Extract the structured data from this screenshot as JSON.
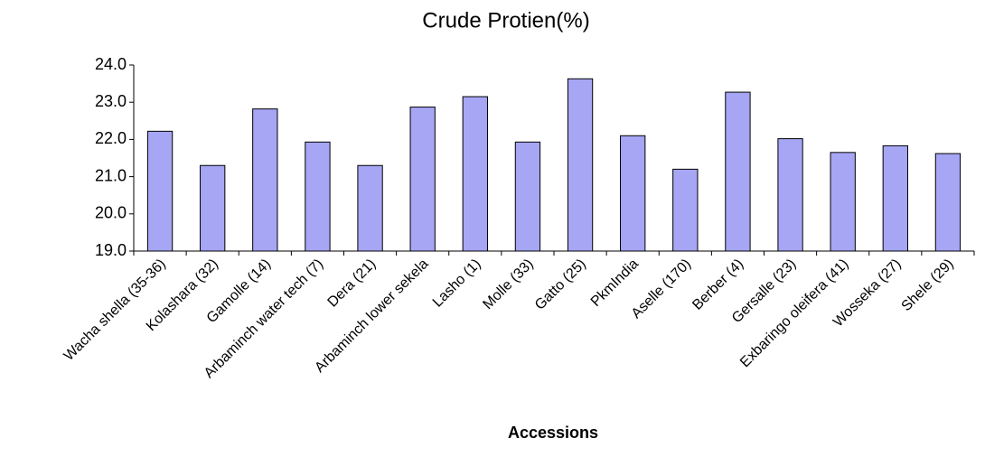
{
  "chart_data": {
    "type": "bar",
    "title": "Crude Protien(%)",
    "x_label": "Accessions",
    "categories": [
      "Wacha shella (35-36)",
      "Kolashara (32)",
      "Gamolle (14)",
      "Arbaminch water tech (7)",
      "Dera (21)",
      "Arbaminch lower sekela",
      "Lasho (1)",
      "Molle (33)",
      "Gatto (25)",
      "PkmIndia",
      "Aselle (170)",
      "Berber (4)",
      "Gersalle (23)",
      "Exbaringo oleifera (41)",
      "Wosseka (27)",
      "Shele (29)"
    ],
    "values": [
      22.22,
      21.3,
      22.82,
      21.93,
      21.3,
      22.87,
      23.15,
      21.93,
      23.63,
      22.1,
      21.2,
      23.27,
      22.02,
      21.65,
      21.83,
      21.62
    ],
    "color": "#a6a6f5",
    "ylim": [
      19,
      24
    ],
    "yticks": [
      {
        "value": 19,
        "label": "19.0"
      },
      {
        "value": 20,
        "label": "20.0"
      },
      {
        "value": 21,
        "label": "21.0"
      },
      {
        "value": 22,
        "label": "22.0"
      },
      {
        "value": 23,
        "label": "23.0"
      },
      {
        "value": 24,
        "label": "24.0"
      }
    ],
    "grid": false
  }
}
